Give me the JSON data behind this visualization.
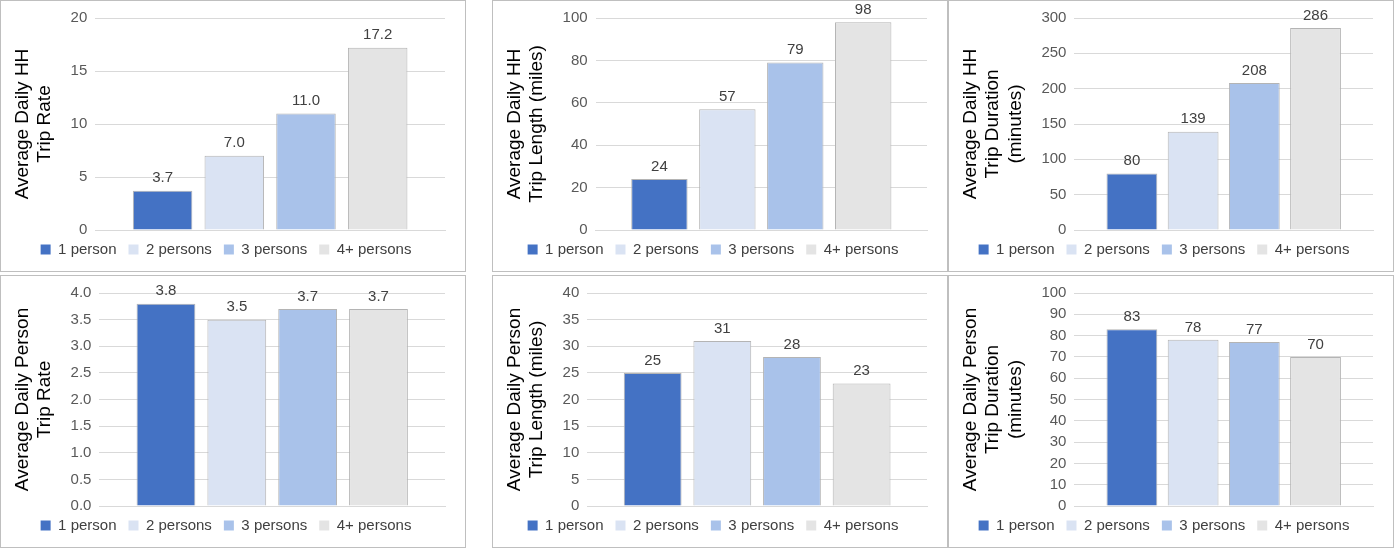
{
  "chart_data": [
    {
      "type": "bar",
      "ylabel": "Average Daily HH Trip Rate",
      "categories": [
        null
      ],
      "tick_labels": "y",
      "legend": "bottom",
      "grid": "y",
      "ylim": [
        0,
        20
      ],
      "yticks": [
        0,
        5,
        10,
        15,
        20
      ],
      "series": [
        {
          "name": "1 person",
          "color": "#4472c4",
          "values": [
            3.7
          ],
          "value_labels": [
            "3.7"
          ]
        },
        {
          "name": "2 persons",
          "color": "#dae3f3",
          "values": [
            7.0
          ],
          "value_labels": [
            "7.0"
          ]
        },
        {
          "name": "3 persons",
          "color": "#a9c2ea",
          "values": [
            11.0
          ],
          "value_labels": [
            "11.0"
          ]
        },
        {
          "name": "4+ persons",
          "color": "#e4e4e4",
          "values": [
            17.2
          ],
          "value_labels": [
            "17.2"
          ]
        }
      ]
    },
    {
      "type": "bar",
      "ylabel": "Average Daily HH Trip Length (miles)",
      "categories": [
        null
      ],
      "tick_labels": "y",
      "legend": "bottom",
      "grid": "y",
      "ylim": [
        0,
        100
      ],
      "yticks": [
        0,
        20,
        40,
        60,
        80,
        100
      ],
      "series": [
        {
          "name": "1 person",
          "color": "#4472c4",
          "values": [
            24
          ],
          "value_labels": [
            "24"
          ]
        },
        {
          "name": "2 persons",
          "color": "#dae3f3",
          "values": [
            57
          ],
          "value_labels": [
            "57"
          ]
        },
        {
          "name": "3 persons",
          "color": "#a9c2ea",
          "values": [
            79
          ],
          "value_labels": [
            "79"
          ]
        },
        {
          "name": "4+ persons",
          "color": "#e4e4e4",
          "values": [
            98
          ],
          "value_labels": [
            "98"
          ]
        }
      ]
    },
    {
      "type": "bar",
      "ylabel": "Average Daily HH Trip Duration (minutes)",
      "categories": [
        null
      ],
      "tick_labels": "y",
      "legend": "bottom",
      "grid": "y",
      "ylim": [
        0,
        300
      ],
      "yticks": [
        0,
        50,
        100,
        150,
        200,
        250,
        300
      ],
      "series": [
        {
          "name": "1 person",
          "color": "#4472c4",
          "values": [
            80
          ],
          "value_labels": [
            "80"
          ]
        },
        {
          "name": "2 persons",
          "color": "#dae3f3",
          "values": [
            139
          ],
          "value_labels": [
            "139"
          ]
        },
        {
          "name": "3 persons",
          "color": "#a9c2ea",
          "values": [
            208
          ],
          "value_labels": [
            "208"
          ]
        },
        {
          "name": "4+ persons",
          "color": "#e4e4e4",
          "values": [
            286
          ],
          "value_labels": [
            "286"
          ]
        }
      ]
    },
    {
      "type": "bar",
      "ylabel": "Average Daily Person Trip Rate",
      "categories": [
        null
      ],
      "tick_labels": "y",
      "legend": "bottom",
      "grid": "y",
      "ylim": [
        0,
        4
      ],
      "yticks": [
        {
          "value": 0,
          "label": "0.0"
        },
        {
          "value": 0.5,
          "label": "0.5"
        },
        {
          "value": 1,
          "label": "1.0"
        },
        {
          "value": 1.5,
          "label": "1.5"
        },
        {
          "value": 2,
          "label": "2.0"
        },
        {
          "value": 2.5,
          "label": "2.5"
        },
        {
          "value": 3,
          "label": "3.0"
        },
        {
          "value": 3.5,
          "label": "3.5"
        },
        {
          "value": 4,
          "label": "4.0"
        }
      ],
      "series": [
        {
          "name": "1 person",
          "color": "#4472c4",
          "values": [
            3.8
          ],
          "value_labels": [
            "3.8"
          ]
        },
        {
          "name": "2 persons",
          "color": "#dae3f3",
          "values": [
            3.5
          ],
          "value_labels": [
            "3.5"
          ]
        },
        {
          "name": "3 persons",
          "color": "#a9c2ea",
          "values": [
            3.7
          ],
          "value_labels": [
            "3.7"
          ]
        },
        {
          "name": "4+ persons",
          "color": "#e4e4e4",
          "values": [
            3.7
          ],
          "value_labels": [
            "3.7"
          ]
        }
      ]
    },
    {
      "type": "bar",
      "ylabel": "Average Daily Person Trip Length (miles)",
      "categories": [
        null
      ],
      "tick_labels": "y",
      "legend": "bottom",
      "grid": "y",
      "ylim": [
        0,
        40
      ],
      "yticks": [
        0,
        5,
        10,
        15,
        20,
        25,
        30,
        35,
        40
      ],
      "series": [
        {
          "name": "1 person",
          "color": "#4472c4",
          "values": [
            25
          ],
          "value_labels": [
            "25"
          ]
        },
        {
          "name": "2 persons",
          "color": "#dae3f3",
          "values": [
            31
          ],
          "value_labels": [
            "31"
          ]
        },
        {
          "name": "3 persons",
          "color": "#a9c2ea",
          "values": [
            28
          ],
          "value_labels": [
            "28"
          ]
        },
        {
          "name": "4+ persons",
          "color": "#e4e4e4",
          "values": [
            23
          ],
          "value_labels": [
            "23"
          ]
        }
      ]
    },
    {
      "type": "bar",
      "ylabel": "Average Daily Person Trip Duration (minutes)",
      "categories": [
        null
      ],
      "tick_labels": "y",
      "legend": "bottom",
      "grid": "y",
      "ylim": [
        0,
        100
      ],
      "yticks": [
        0,
        10,
        20,
        30,
        40,
        50,
        60,
        70,
        80,
        90,
        100
      ],
      "series": [
        {
          "name": "1 person",
          "color": "#4472c4",
          "values": [
            83
          ],
          "value_labels": [
            "83"
          ]
        },
        {
          "name": "2 persons",
          "color": "#dae3f3",
          "values": [
            78
          ],
          "value_labels": [
            "78"
          ]
        },
        {
          "name": "3 persons",
          "color": "#a9c2ea",
          "values": [
            77
          ],
          "value_labels": [
            "77"
          ]
        },
        {
          "name": "4+ persons",
          "color": "#e4e4e4",
          "values": [
            70
          ],
          "value_labels": [
            "70"
          ]
        }
      ]
    }
  ]
}
